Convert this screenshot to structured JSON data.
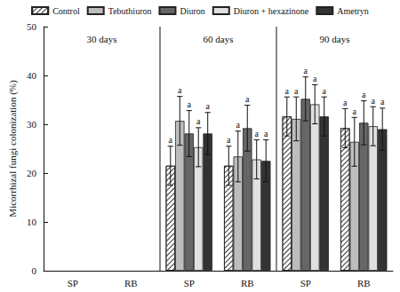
{
  "chart_data": {
    "type": "bar",
    "y_label": "Micorrhizal fungi colonization (%)",
    "categories": [
      "SP",
      "RB",
      "SP",
      "RB",
      "SP",
      "RB"
    ],
    "panel_labels": [
      "30 days",
      "60 days",
      "90 days"
    ],
    "ylim": [
      0,
      50
    ],
    "yticks": [
      0,
      10,
      20,
      30,
      40,
      50
    ],
    "legend": "top",
    "series": [
      {
        "name": "Control",
        "color": "#ffffff",
        "values": [
          null,
          null,
          21.5,
          21.5,
          31.6,
          29.2
        ],
        "errors": [
          null,
          null,
          4,
          4,
          4,
          4
        ],
        "letters": [
          null,
          null,
          "a",
          "a",
          "a",
          "a"
        ]
      },
      {
        "name": "Tebuthiuron",
        "color": "#bdbdbd",
        "values": [
          null,
          null,
          30.7,
          23.4,
          31.1,
          26.4
        ],
        "errors": [
          null,
          null,
          5,
          5.2,
          4.5,
          5
        ],
        "letters": [
          null,
          null,
          "a",
          "a",
          "a",
          "a"
        ]
      },
      {
        "name": "Diuron",
        "color": "#666666",
        "values": [
          null,
          null,
          28.1,
          29.2,
          35.2,
          30.3
        ],
        "errors": [
          null,
          null,
          4.7,
          4.7,
          4.5,
          4.5
        ],
        "letters": [
          null,
          null,
          "a",
          "a",
          "a",
          "a"
        ]
      },
      {
        "name": "Diuron + hexazinone",
        "color": "#e0e0e0",
        "values": [
          null,
          null,
          25.3,
          22.8,
          34.1,
          29.6
        ],
        "errors": [
          null,
          null,
          4,
          4,
          4,
          4
        ],
        "letters": [
          null,
          null,
          "a",
          "a",
          "a",
          "a"
        ]
      },
      {
        "name": "Ametryn",
        "color": "#333333",
        "values": [
          null,
          null,
          28.1,
          22.5,
          31.6,
          29.0
        ],
        "errors": [
          null,
          null,
          4.3,
          4.3,
          4,
          4.3
        ],
        "letters": [
          null,
          null,
          "a",
          "a",
          "a",
          "a"
        ]
      }
    ]
  }
}
